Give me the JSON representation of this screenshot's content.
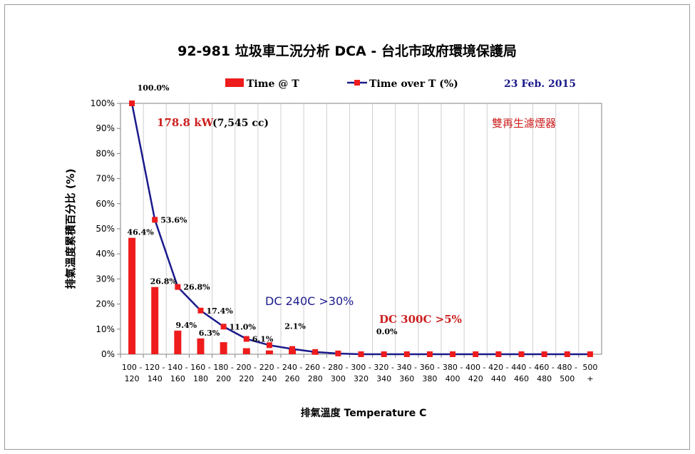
{
  "chart_data": {
    "type": "bar+line",
    "title": "92-981 垃圾車工況分析 DCA - 台北市政府環境保護局",
    "date": "23 Feb. 2015",
    "xlabel": "排氣溫度 Temperature C",
    "ylabel": "排氣溫度累積百分比 (%)",
    "ylim": [
      0,
      100
    ],
    "yticks": [
      "0%",
      "10%",
      "20%",
      "30%",
      "40%",
      "50%",
      "60%",
      "70%",
      "80%",
      "90%",
      "100%"
    ],
    "categories": [
      [
        "100 -",
        "120"
      ],
      [
        "120 -",
        "140"
      ],
      [
        "140 -",
        "160"
      ],
      [
        "160 -",
        "180"
      ],
      [
        "180 -",
        "200"
      ],
      [
        "200 -",
        "220"
      ],
      [
        "220 -",
        "240"
      ],
      [
        "240 -",
        "260"
      ],
      [
        "260 -",
        "280"
      ],
      [
        "280 -",
        "300"
      ],
      [
        "300 -",
        "320"
      ],
      [
        "320 -",
        "340"
      ],
      [
        "340 -",
        "360"
      ],
      [
        "360 -",
        "380"
      ],
      [
        "380 -",
        "400"
      ],
      [
        "400 -",
        "420"
      ],
      [
        "420 -",
        "440"
      ],
      [
        "440 -",
        "460"
      ],
      [
        "460 -",
        "480"
      ],
      [
        "480 -",
        "500"
      ],
      [
        "500",
        "+"
      ]
    ],
    "series": [
      {
        "name": "Time @ T",
        "kind": "bar",
        "color": "#ee1c1c",
        "values": [
          46.4,
          26.8,
          9.4,
          6.3,
          4.8,
          2.4,
          1.5,
          2.1,
          0.8,
          0.2,
          0.0,
          0.0,
          0.0,
          0.0,
          0.0,
          0.0,
          0.0,
          0.0,
          0.0,
          0.0,
          0.0
        ]
      },
      {
        "name": "Time over T (%)",
        "kind": "line",
        "color": "#1a1a8c",
        "marker_color": "#ee1c1c",
        "values": [
          100.0,
          53.6,
          26.8,
          17.4,
          11.0,
          6.1,
          3.6,
          2.1,
          0.9,
          0.3,
          0.0,
          0.0,
          0.0,
          0.0,
          0.0,
          0.0,
          0.0,
          0.0,
          0.0,
          0.0,
          0.0
        ]
      }
    ],
    "bar_labels": [
      {
        "index": 0,
        "text": "46.4%"
      },
      {
        "index": 1,
        "text": "26.8%"
      },
      {
        "index": 2,
        "text": "9.4%"
      },
      {
        "index": 3,
        "text": "6.3%"
      }
    ],
    "line_labels": [
      {
        "index": 0,
        "text": "100.0%"
      },
      {
        "index": 1,
        "text": "53.6%"
      },
      {
        "index": 2,
        "text": "26.8%"
      },
      {
        "index": 3,
        "text": "17.4%"
      },
      {
        "index": 4,
        "text": "11.0%"
      },
      {
        "index": 5,
        "text": "6.1%"
      },
      {
        "index": 7,
        "text": "2.1%"
      },
      {
        "index": 11,
        "text": "0.0%"
      }
    ],
    "annotations": {
      "power_red": "178.8 kW",
      "power_black": "(7,545 cc)",
      "dc240": "DC 240C >30%",
      "dc300": "DC 300C >5%",
      "filter": "雙再生濾煙器"
    },
    "grid": "vertical",
    "legend_placement": "top"
  }
}
